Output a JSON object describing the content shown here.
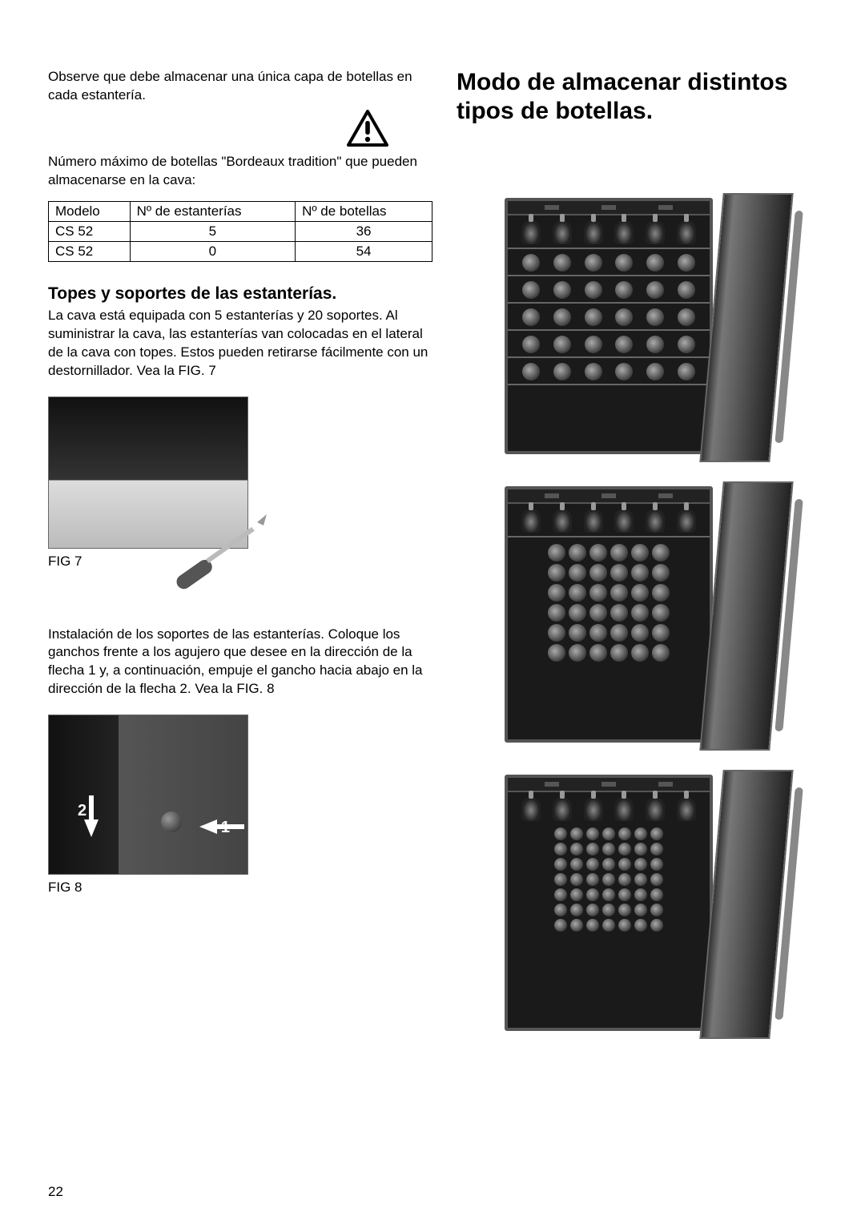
{
  "page_number": "22",
  "left": {
    "intro_text": "Observe que debe almacenar una única capa de botellas en cada estantería.",
    "bordeaux_text": "Número máximo de botellas \"Bordeaux tradition\" que pueden almacenarse en la cava:",
    "table": {
      "columns": [
        "Modelo",
        "Nº de estanterías",
        "Nº de botellas"
      ],
      "rows": [
        [
          "CS 52",
          "5",
          "36"
        ],
        [
          "CS 52",
          "0",
          "54"
        ]
      ],
      "col_align": [
        "left",
        "center",
        "center"
      ],
      "border_color": "#000000",
      "font_size_pt": 12
    },
    "section_heading": "Topes y soportes de las estanterías.",
    "section_body": "La cava está equipada con 5 estanterías y 20 soportes. Al suministrar la cava, las estanterías van colocadas en el lateral de la cava con topes. Estos pueden retirarse fácilmente con un destornillador. Vea la FIG. 7",
    "fig7_caption": "FIG 7",
    "install_body": "Instalación de los soportes de las estanterías. Coloque los ganchos frente a los agujero que desee en la dirección de la flecha 1 y, a continuación, empuje el gancho hacia abajo en la dirección de la flecha 2. Vea la FIG. 8",
    "fig8_caption": "FIG 8",
    "fig8_labels": {
      "one": "1",
      "two": "2"
    }
  },
  "right": {
    "heading": "Modo de almacenar distintos tipos de botellas.",
    "coolers": [
      {
        "type": "shelved",
        "rows": [
          {
            "style": "top",
            "count": 6
          },
          {
            "style": "side",
            "count": 6
          },
          {
            "style": "side",
            "count": 6
          },
          {
            "style": "side",
            "count": 6
          },
          {
            "style": "side",
            "count": 6
          },
          {
            "style": "side",
            "count": 6
          }
        ]
      },
      {
        "type": "mixed",
        "top_row": {
          "style": "top",
          "count": 6
        },
        "stack_rows": [
          6,
          6,
          6,
          6,
          6,
          6
        ]
      },
      {
        "type": "stacked",
        "top_row": {
          "style": "top",
          "count": 6
        },
        "stack_rows": [
          7,
          7,
          7,
          7,
          7,
          7,
          7
        ]
      }
    ]
  },
  "style": {
    "body_font_size_pt": 12,
    "h1_font_size_pt": 22,
    "h2_font_size_pt": 15,
    "text_color": "#000000",
    "background_color": "#ffffff",
    "warning_icon_stroke": "#000000"
  }
}
